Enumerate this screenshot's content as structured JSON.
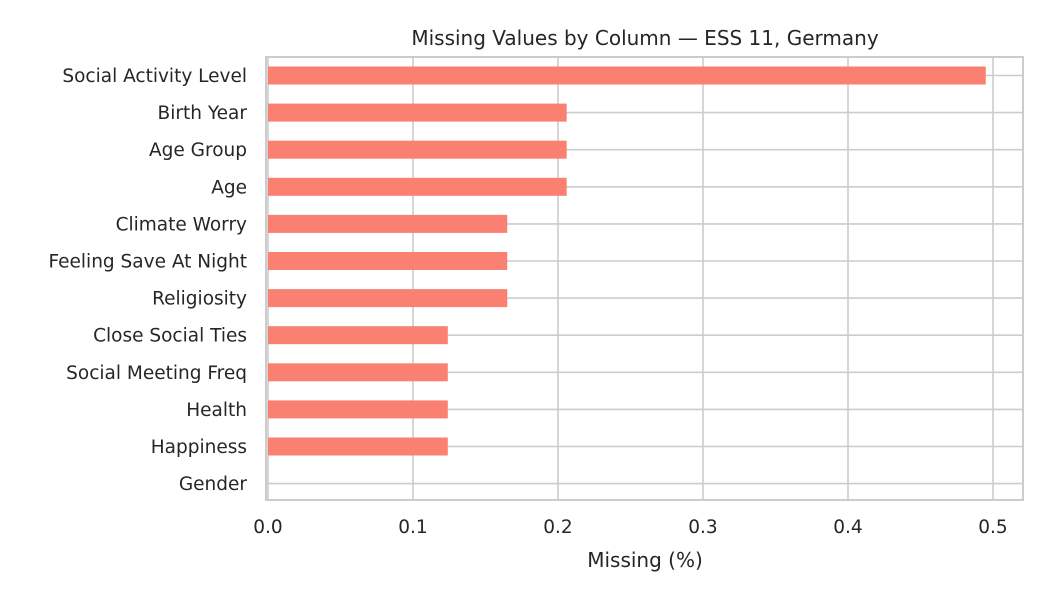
{
  "chart_data": {
    "type": "bar",
    "orientation": "horizontal",
    "title": "Missing Values by Column — ESS 11, Germany",
    "xlabel": "Missing (%)",
    "ylabel": "",
    "xlim": [
      0,
      0.52
    ],
    "xticks": [
      0.0,
      0.1,
      0.2,
      0.3,
      0.4,
      0.5
    ],
    "xtick_labels": [
      "0.0",
      "0.1",
      "0.2",
      "0.3",
      "0.4",
      "0.5"
    ],
    "grid": true,
    "bar_color": "#fa8072",
    "categories": [
      "Social Activity Level",
      "Birth Year",
      "Age Group",
      "Age",
      "Climate Worry",
      "Feeling Save At Night",
      "Religiosity",
      "Close Social Ties",
      "Social Meeting Freq",
      "Health",
      "Happiness",
      "Gender"
    ],
    "values": [
      0.495,
      0.206,
      0.206,
      0.206,
      0.165,
      0.165,
      0.165,
      0.124,
      0.124,
      0.124,
      0.124,
      0.0
    ]
  }
}
